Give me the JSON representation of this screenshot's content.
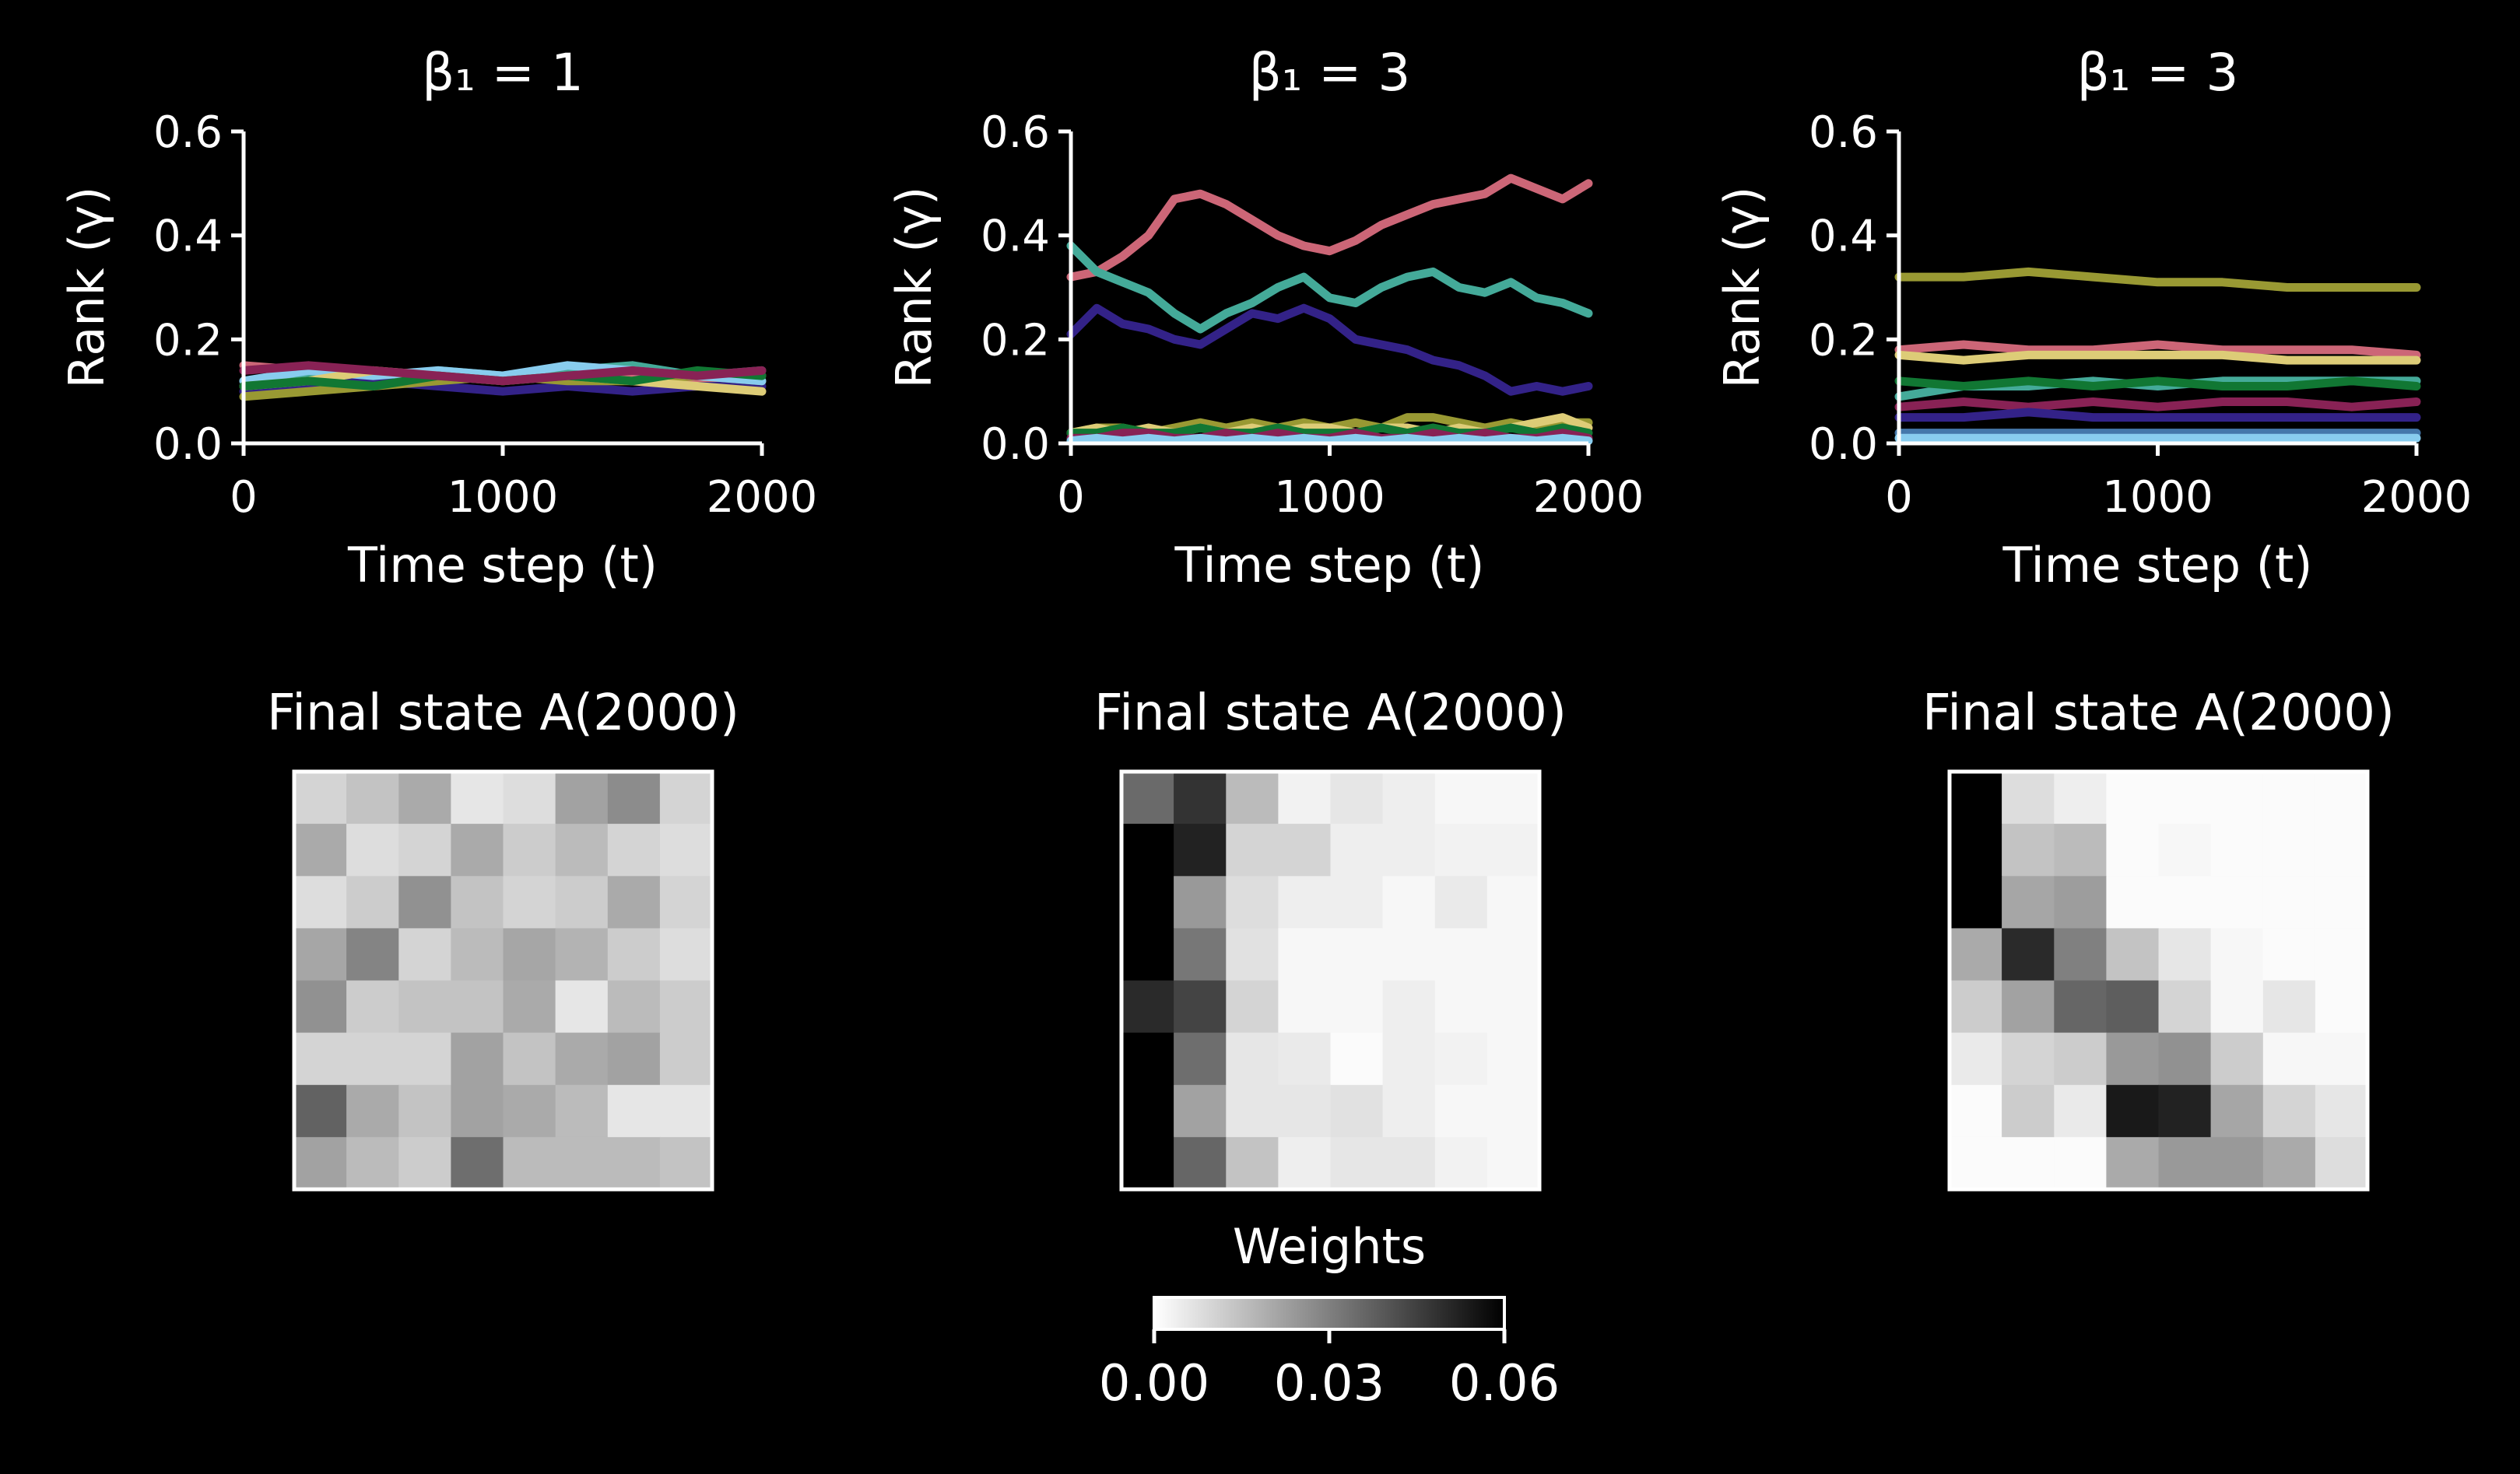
{
  "figure": {
    "background": "#000000",
    "foreground": "#ffffff"
  },
  "chart_data": [
    {
      "type": "line",
      "panel": "top-left",
      "title": "β₁ = 1",
      "xlabel": "Time step (t)",
      "ylabel": "Rank (γ)",
      "xlim": [
        0,
        2000
      ],
      "ylim": [
        0,
        0.6
      ],
      "xticks": [
        "0",
        "1000",
        "2000"
      ],
      "yticks": [
        "0.0",
        "0.2",
        "0.4",
        "0.6"
      ],
      "x": [
        0,
        250,
        500,
        750,
        1000,
        1250,
        1500,
        1750,
        2000
      ],
      "series": [
        {
          "color": "#cc6677",
          "values": [
            0.15,
            0.14,
            0.13,
            0.12,
            0.13,
            0.12,
            0.13,
            0.12,
            0.13
          ]
        },
        {
          "color": "#44aa99",
          "values": [
            0.12,
            0.13,
            0.12,
            0.14,
            0.13,
            0.14,
            0.15,
            0.13,
            0.14
          ]
        },
        {
          "color": "#332288",
          "values": [
            0.1,
            0.11,
            0.12,
            0.11,
            0.1,
            0.11,
            0.1,
            0.11,
            0.11
          ]
        },
        {
          "color": "#999933",
          "values": [
            0.09,
            0.1,
            0.11,
            0.12,
            0.13,
            0.12,
            0.12,
            0.13,
            0.12
          ]
        },
        {
          "color": "#88ccee",
          "values": [
            0.12,
            0.14,
            0.13,
            0.14,
            0.13,
            0.15,
            0.14,
            0.13,
            0.12
          ]
        },
        {
          "color": "#ddcc77",
          "values": [
            0.11,
            0.12,
            0.14,
            0.13,
            0.12,
            0.13,
            0.12,
            0.11,
            0.1
          ]
        },
        {
          "color": "#117733",
          "values": [
            0.11,
            0.12,
            0.11,
            0.13,
            0.12,
            0.13,
            0.12,
            0.14,
            0.13
          ]
        },
        {
          "color": "#882255",
          "values": [
            0.14,
            0.15,
            0.14,
            0.13,
            0.12,
            0.13,
            0.14,
            0.13,
            0.14
          ]
        }
      ]
    },
    {
      "type": "line",
      "panel": "top-middle",
      "title": "β₁ = 3",
      "xlabel": "Time step (t)",
      "ylabel": "Rank (γ)",
      "xlim": [
        0,
        2000
      ],
      "ylim": [
        0,
        0.6
      ],
      "xticks": [
        "0",
        "1000",
        "2000"
      ],
      "yticks": [
        "0.0",
        "0.2",
        "0.4",
        "0.6"
      ],
      "x": [
        0,
        100,
        200,
        300,
        400,
        500,
        600,
        700,
        800,
        900,
        1000,
        1100,
        1200,
        1300,
        1400,
        1500,
        1600,
        1700,
        1800,
        1900,
        2000
      ],
      "series": [
        {
          "color": "#cc6677",
          "values": [
            0.32,
            0.33,
            0.36,
            0.4,
            0.47,
            0.48,
            0.46,
            0.43,
            0.4,
            0.38,
            0.37,
            0.39,
            0.42,
            0.44,
            0.46,
            0.47,
            0.48,
            0.51,
            0.49,
            0.47,
            0.5
          ]
        },
        {
          "color": "#44aa99",
          "values": [
            0.38,
            0.33,
            0.31,
            0.29,
            0.25,
            0.22,
            0.25,
            0.27,
            0.3,
            0.32,
            0.28,
            0.27,
            0.3,
            0.32,
            0.33,
            0.3,
            0.29,
            0.31,
            0.28,
            0.27,
            0.25
          ]
        },
        {
          "color": "#332288",
          "values": [
            0.21,
            0.26,
            0.23,
            0.22,
            0.2,
            0.19,
            0.22,
            0.25,
            0.24,
            0.26,
            0.24,
            0.2,
            0.19,
            0.18,
            0.16,
            0.15,
            0.13,
            0.1,
            0.11,
            0.1,
            0.11
          ]
        },
        {
          "color": "#999933",
          "values": [
            0.02,
            0.03,
            0.03,
            0.02,
            0.03,
            0.04,
            0.03,
            0.04,
            0.03,
            0.04,
            0.03,
            0.04,
            0.03,
            0.05,
            0.05,
            0.04,
            0.03,
            0.04,
            0.03,
            0.04,
            0.04
          ]
        },
        {
          "color": "#ddcc77",
          "values": [
            0.02,
            0.03,
            0.02,
            0.03,
            0.02,
            0.03,
            0.02,
            0.03,
            0.02,
            0.03,
            0.03,
            0.02,
            0.03,
            0.03,
            0.02,
            0.03,
            0.02,
            0.03,
            0.04,
            0.05,
            0.03
          ]
        },
        {
          "color": "#117733",
          "values": [
            0.02,
            0.02,
            0.03,
            0.02,
            0.02,
            0.03,
            0.02,
            0.02,
            0.03,
            0.02,
            0.02,
            0.02,
            0.03,
            0.02,
            0.03,
            0.02,
            0.02,
            0.03,
            0.02,
            0.03,
            0.02
          ]
        },
        {
          "color": "#882255",
          "values": [
            0.01,
            0.01,
            0.02,
            0.02,
            0.01,
            0.01,
            0.02,
            0.01,
            0.02,
            0.01,
            0.01,
            0.02,
            0.01,
            0.01,
            0.02,
            0.01,
            0.02,
            0.01,
            0.01,
            0.02,
            0.01
          ]
        },
        {
          "color": "#88ccee",
          "values": [
            0.005,
            0.01,
            0.005,
            0.01,
            0.005,
            0.01,
            0.005,
            0.01,
            0.005,
            0.01,
            0.005,
            0.01,
            0.005,
            0.01,
            0.005,
            0.01,
            0.005,
            0.01,
            0.005,
            0.01,
            0.005
          ]
        }
      ]
    },
    {
      "type": "line",
      "panel": "top-right",
      "title": "β₁ = 3",
      "xlabel": "Time step (t)",
      "ylabel": "Rank (γ)",
      "xlim": [
        0,
        2000
      ],
      "ylim": [
        0,
        0.6
      ],
      "xticks": [
        "0",
        "1000",
        "2000"
      ],
      "yticks": [
        "0.0",
        "0.2",
        "0.4",
        "0.6"
      ],
      "x": [
        0,
        250,
        500,
        750,
        1000,
        1250,
        1500,
        1750,
        2000
      ],
      "series": [
        {
          "color": "#999933",
          "values": [
            0.32,
            0.32,
            0.33,
            0.32,
            0.31,
            0.31,
            0.3,
            0.3,
            0.3
          ]
        },
        {
          "color": "#cc6677",
          "values": [
            0.18,
            0.19,
            0.18,
            0.18,
            0.19,
            0.18,
            0.18,
            0.18,
            0.17
          ]
        },
        {
          "color": "#ddcc77",
          "values": [
            0.17,
            0.16,
            0.17,
            0.17,
            0.17,
            0.17,
            0.16,
            0.16,
            0.16
          ]
        },
        {
          "color": "#44aa99",
          "values": [
            0.09,
            0.11,
            0.11,
            0.12,
            0.11,
            0.12,
            0.12,
            0.12,
            0.12
          ]
        },
        {
          "color": "#117733",
          "values": [
            0.12,
            0.11,
            0.12,
            0.11,
            0.12,
            0.11,
            0.11,
            0.12,
            0.11
          ]
        },
        {
          "color": "#882255",
          "values": [
            0.07,
            0.08,
            0.07,
            0.08,
            0.07,
            0.08,
            0.08,
            0.07,
            0.08
          ]
        },
        {
          "color": "#332288",
          "values": [
            0.05,
            0.05,
            0.06,
            0.05,
            0.05,
            0.05,
            0.05,
            0.05,
            0.05
          ]
        },
        {
          "color": "#4477aa",
          "values": [
            0.02,
            0.02,
            0.02,
            0.02,
            0.02,
            0.02,
            0.02,
            0.02,
            0.02
          ]
        },
        {
          "color": "#88ccee",
          "values": [
            0.01,
            0.01,
            0.01,
            0.01,
            0.01,
            0.01,
            0.01,
            0.01,
            0.01
          ]
        }
      ]
    },
    {
      "type": "heatmap",
      "panel": "bottom-left",
      "title": "Final state A(2000)",
      "vmin": 0.0,
      "vmax": 0.06,
      "values": [
        [
          0.01,
          0.014,
          0.02,
          0.006,
          0.008,
          0.022,
          0.027,
          0.01
        ],
        [
          0.02,
          0.008,
          0.01,
          0.02,
          0.012,
          0.016,
          0.01,
          0.008
        ],
        [
          0.008,
          0.012,
          0.026,
          0.014,
          0.01,
          0.012,
          0.02,
          0.01
        ],
        [
          0.021,
          0.029,
          0.01,
          0.016,
          0.021,
          0.018,
          0.012,
          0.008
        ],
        [
          0.026,
          0.012,
          0.014,
          0.014,
          0.02,
          0.006,
          0.016,
          0.012
        ],
        [
          0.01,
          0.01,
          0.01,
          0.022,
          0.014,
          0.02,
          0.022,
          0.012
        ],
        [
          0.037,
          0.02,
          0.014,
          0.022,
          0.02,
          0.016,
          0.006,
          0.006
        ],
        [
          0.022,
          0.016,
          0.012,
          0.034,
          0.016,
          0.016,
          0.016,
          0.014
        ]
      ]
    },
    {
      "type": "heatmap",
      "panel": "bottom-middle",
      "title": "Final state A(2000)",
      "vmin": 0.0,
      "vmax": 0.06,
      "values": [
        [
          0.035,
          0.048,
          0.016,
          0.003,
          0.006,
          0.004,
          0.002,
          0.002
        ],
        [
          0.06,
          0.052,
          0.01,
          0.01,
          0.004,
          0.004,
          0.003,
          0.003
        ],
        [
          0.06,
          0.024,
          0.008,
          0.004,
          0.004,
          0.002,
          0.005,
          0.002
        ],
        [
          0.06,
          0.032,
          0.007,
          0.002,
          0.002,
          0.002,
          0.002,
          0.002
        ],
        [
          0.05,
          0.044,
          0.01,
          0.002,
          0.002,
          0.004,
          0.002,
          0.002
        ],
        [
          0.06,
          0.034,
          0.006,
          0.005,
          0.001,
          0.004,
          0.003,
          0.002
        ],
        [
          0.06,
          0.022,
          0.006,
          0.006,
          0.007,
          0.004,
          0.002,
          0.002
        ],
        [
          0.06,
          0.036,
          0.014,
          0.004,
          0.006,
          0.006,
          0.003,
          0.002
        ]
      ]
    },
    {
      "type": "heatmap",
      "panel": "bottom-right",
      "title": "Final state A(2000)",
      "vmin": 0.0,
      "vmax": 0.06,
      "values": [
        [
          0.06,
          0.008,
          0.004,
          0.001,
          0.001,
          0.001,
          0.001,
          0.001
        ],
        [
          0.06,
          0.014,
          0.016,
          0.001,
          0.002,
          0.001,
          0.001,
          0.001
        ],
        [
          0.06,
          0.021,
          0.023,
          0.001,
          0.001,
          0.001,
          0.001,
          0.001
        ],
        [
          0.02,
          0.05,
          0.03,
          0.014,
          0.006,
          0.002,
          0.001,
          0.001
        ],
        [
          0.012,
          0.022,
          0.036,
          0.038,
          0.01,
          0.002,
          0.006,
          0.001
        ],
        [
          0.005,
          0.01,
          0.012,
          0.024,
          0.026,
          0.012,
          0.002,
          0.002
        ],
        [
          0.001,
          0.012,
          0.005,
          0.054,
          0.052,
          0.021,
          0.01,
          0.006
        ],
        [
          0.001,
          0.001,
          0.001,
          0.02,
          0.024,
          0.024,
          0.02,
          0.008
        ]
      ]
    }
  ],
  "colorbar": {
    "title": "Weights",
    "vmin": 0.0,
    "vmax": 0.06,
    "ticks": [
      0.0,
      0.03,
      0.06
    ],
    "tick_labels": [
      "0.00",
      "0.03",
      "0.06"
    ]
  }
}
